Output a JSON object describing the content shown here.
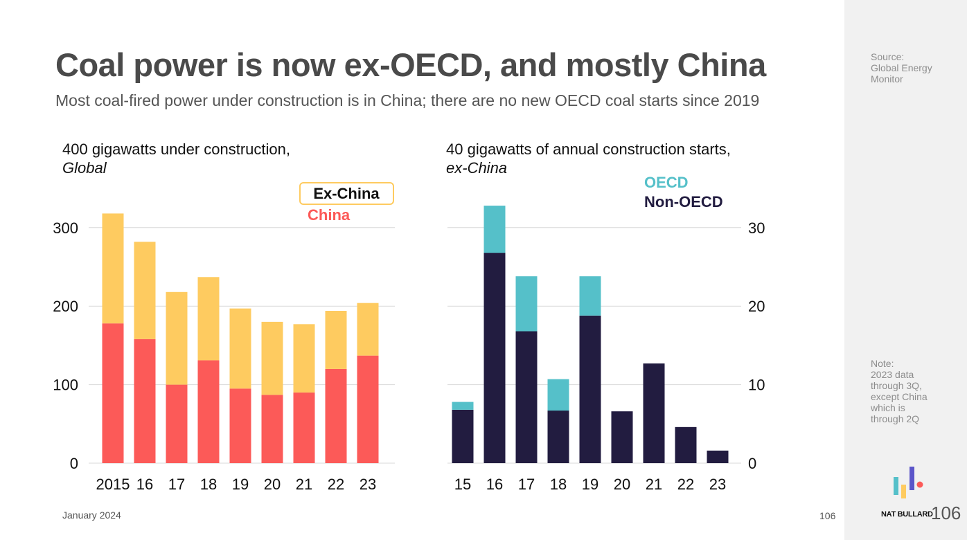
{
  "header": {
    "title": "Coal power is now ex-OECD, and mostly China",
    "subtitle": "Most coal-fired power under construction is in China; there are no new OECD coal starts since 2019"
  },
  "sidebar": {
    "source_label": "Source:",
    "source_lines": [
      "Global Energy",
      "Monitor"
    ],
    "note_label": "Note:",
    "note_lines": [
      "2023 data",
      "through 3Q,",
      "except China",
      "which is",
      "through 2Q"
    ]
  },
  "footer": {
    "date": "January 2024",
    "page": "106",
    "brand": "NAT BULLARD",
    "big_page": "106"
  },
  "colors": {
    "china": "#fc5a58",
    "ex_china": "#fecb60",
    "oecd": "#55c0c9",
    "non_oecd": "#221c40",
    "grid": "#d9d9d9",
    "sidebar": "#f1f1f1"
  },
  "chart_data": [
    {
      "type": "bar",
      "stacked": true,
      "title": "400 gigawatts under construction,",
      "subtitle": "Global",
      "categories": [
        "2015",
        "16",
        "17",
        "18",
        "19",
        "20",
        "21",
        "22",
        "23"
      ],
      "series": [
        {
          "name": "China",
          "values": [
            178,
            158,
            100,
            131,
            95,
            87,
            90,
            120,
            137
          ]
        },
        {
          "name": "Ex-China",
          "values": [
            140,
            124,
            118,
            106,
            102,
            93,
            87,
            74,
            67
          ]
        }
      ],
      "yticks": [
        0,
        100,
        200,
        300
      ],
      "ylim": [
        0,
        330
      ],
      "axis_side": "left",
      "legend": "top-right",
      "grid": true
    },
    {
      "type": "bar",
      "stacked": true,
      "title": "40 gigawatts of annual construction starts,",
      "subtitle": "ex-China",
      "categories": [
        "15",
        "16",
        "17",
        "18",
        "19",
        "20",
        "21",
        "22",
        "23"
      ],
      "series": [
        {
          "name": "Non-OECD",
          "values": [
            6.8,
            26.8,
            16.8,
            6.7,
            18.8,
            6.6,
            12.7,
            4.6,
            1.6
          ]
        },
        {
          "name": "OECD",
          "values": [
            1.0,
            6.0,
            7.0,
            4.0,
            5.0,
            0,
            0,
            0,
            0
          ]
        }
      ],
      "yticks": [
        0,
        10,
        20,
        30
      ],
      "ylim": [
        0,
        33
      ],
      "axis_side": "right",
      "legend": "top-right",
      "grid": true
    }
  ]
}
